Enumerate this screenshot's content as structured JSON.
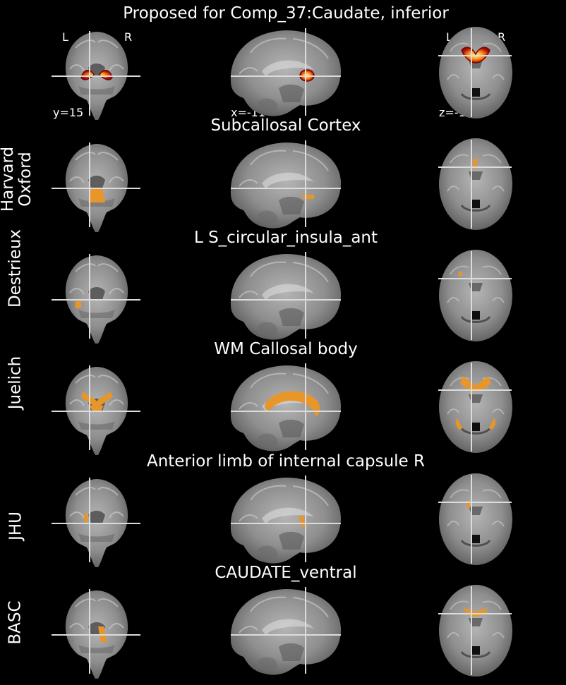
{
  "title": "Proposed for Comp_37:Caudate, inferior",
  "orientation": {
    "left": "L",
    "right": "R"
  },
  "coords": {
    "y": "y=15",
    "x": "x=-11",
    "z": "z=-1"
  },
  "rows": [
    {
      "atlas": "",
      "region": ""
    },
    {
      "atlas": "Harvard\nOxford",
      "region": "Subcallosal Cortex"
    },
    {
      "atlas": "Destrieux",
      "region": "L S_circular_insula_ant"
    },
    {
      "atlas": "Juelich",
      "region": "WM Callosal body"
    },
    {
      "atlas": "JHU",
      "region": "Anterior limb of internal capsule R"
    },
    {
      "atlas": "BASC",
      "region": "CAUDATE_ventral"
    }
  ],
  "colors": {
    "background": "#000000",
    "overlay": "#e8962a",
    "brain": "#8a8a8a",
    "crosshair": "#d8d8d8",
    "heat_hot": "#ffff80",
    "heat_mid": "#ff6600",
    "heat_low": "#b01010"
  }
}
